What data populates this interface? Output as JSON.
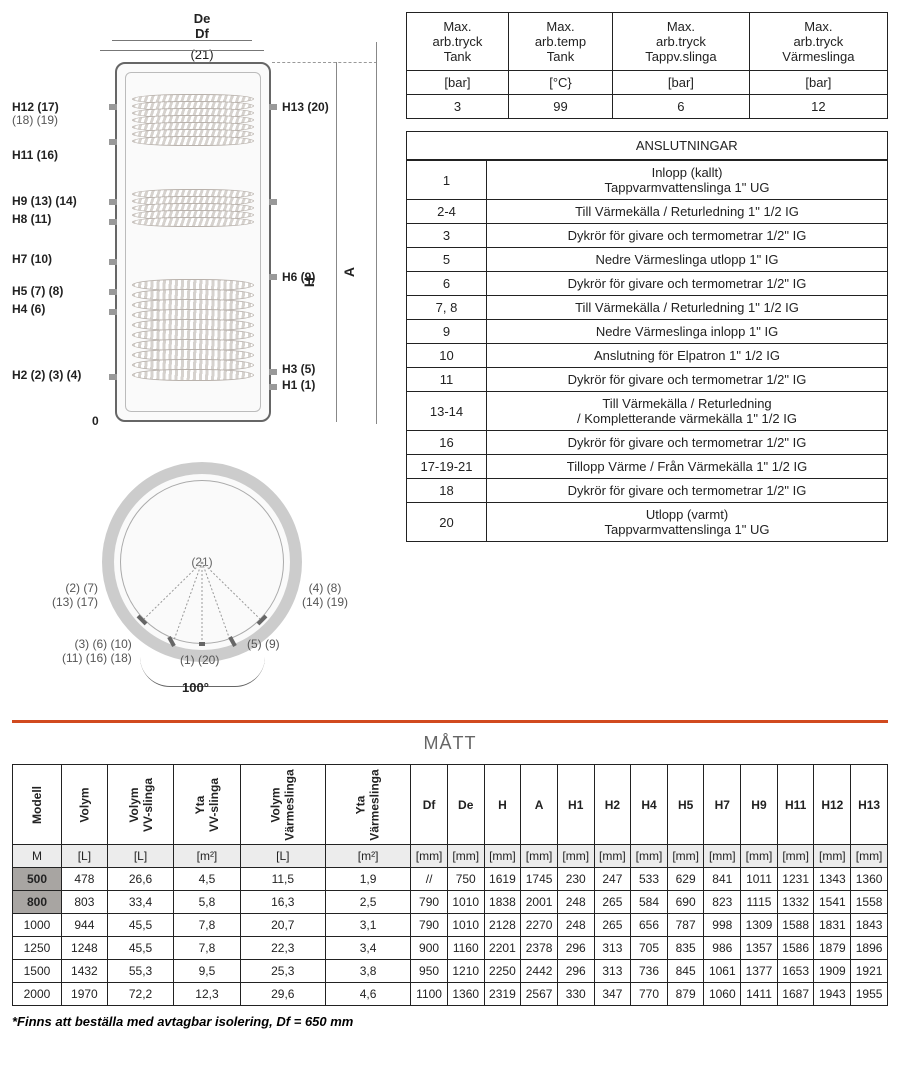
{
  "diagram": {
    "top_labels": [
      "De",
      "Df",
      "(21)"
    ],
    "side_labels_left": [
      "H12 (17)",
      "(18) (19)",
      "H11 (16)",
      "H9 (13) (14)",
      "H8 (11)",
      "H7 (10)",
      "H5 (7) (8)",
      "H4 (6)",
      "H2 (2) (3) (4)",
      "0"
    ],
    "side_labels_right": [
      "H13 (20)",
      "H6 (9)",
      "H3 (5)",
      "H1 (1)"
    ],
    "axis_H": "H",
    "axis_A": "A",
    "topview_center": "(21)",
    "topview_left1": "(2) (7)",
    "topview_left2": "(13) (17)",
    "topview_right1": "(4) (8)",
    "topview_right2": "(14) (19)",
    "topview_bl1": "(3) (6) (10)",
    "topview_bl2": "(11) (16) (18)",
    "topview_br": "(5) (9)",
    "topview_bottom": "(1) (20)",
    "arc_label": "100°"
  },
  "spec_table": {
    "headers": [
      "Max.\narb.tryck\nTank",
      "Max.\narb.temp\nTank",
      "Max.\narb.tryck\nTappv.slinga",
      "Max.\narb.tryck\nVärmeslinga"
    ],
    "units": [
      "[bar]",
      "[°C}",
      "[bar]",
      "[bar]"
    ],
    "values": [
      "3",
      "99",
      "6",
      "12"
    ]
  },
  "connections": {
    "title": "ANSLUTNINGAR",
    "rows": [
      [
        "1",
        "Inlopp (kallt)\nTappvarmvattenslinga 1\" UG"
      ],
      [
        "2-4",
        "Till Värmekälla / Returledning 1\" 1/2 IG"
      ],
      [
        "3",
        "Dykrör för givare och termometrar 1/2\" IG"
      ],
      [
        "5",
        "Nedre Värmeslinga utlopp 1\" IG"
      ],
      [
        "6",
        "Dykrör för givare och termometrar 1/2\" IG"
      ],
      [
        "7, 8",
        "Till Värmekälla / Returledning 1\" 1/2 IG"
      ],
      [
        "9",
        "Nedre Värmeslinga inlopp 1\" IG"
      ],
      [
        "10",
        "Anslutning för Elpatron 1\" 1/2 IG"
      ],
      [
        "11",
        "Dykrör för givare och termometrar 1/2\" IG"
      ],
      [
        "13-14",
        "Till Värmekälla / Returledning\n/ Kompletterande värmekälla 1\" 1/2 IG"
      ],
      [
        "16",
        "Dykrör för givare och termometrar 1/2\" IG"
      ],
      [
        "17-19-21",
        "Tillopp Värme / Från Värmekälla 1\" 1/2 IG"
      ],
      [
        "18",
        "Dykrör för givare och termometrar 1/2\" IG"
      ],
      [
        "20",
        "Utlopp (varmt)\nTappvarmvattenslinga 1\" UG"
      ]
    ]
  },
  "matt_title": "MÅTT",
  "matt_table": {
    "headers": [
      "Modell",
      "Volym",
      "Volym\nVV-slinga",
      "Yta\nVV-slinga",
      "Volym\nVärmeslinga",
      "Yta\nVärmeslinga",
      "Df",
      "De",
      "H",
      "A",
      "H1",
      "H2",
      "H4",
      "H5",
      "H7",
      "H9",
      "H11",
      "H12",
      "H13"
    ],
    "units": [
      "M",
      "[L]",
      "[L]",
      "[m²]",
      "[L]",
      "[m²]",
      "[mm]",
      "[mm]",
      "[mm]",
      "[mm]",
      "[mm]",
      "[mm]",
      "[mm]",
      "[mm]",
      "[mm]",
      "[mm]",
      "[mm]",
      "[mm]",
      "[mm]"
    ],
    "rows": [
      {
        "hl": true,
        "cells": [
          "500",
          "478",
          "26,6",
          "4,5",
          "11,5",
          "1,9",
          "//",
          "750",
          "1619",
          "1745",
          "230",
          "247",
          "533",
          "629",
          "841",
          "1011",
          "1231",
          "1343",
          "1360"
        ]
      },
      {
        "hl": true,
        "cells": [
          "800",
          "803",
          "33,4",
          "5,8",
          "16,3",
          "2,5",
          "790",
          "1010",
          "1838",
          "2001",
          "248",
          "265",
          "584",
          "690",
          "823",
          "1115",
          "1332",
          "1541",
          "1558"
        ]
      },
      {
        "hl": false,
        "cells": [
          "1000",
          "944",
          "45,5",
          "7,8",
          "20,7",
          "3,1",
          "790",
          "1010",
          "2128",
          "2270",
          "248",
          "265",
          "656",
          "787",
          "998",
          "1309",
          "1588",
          "1831",
          "1843"
        ]
      },
      {
        "hl": false,
        "cells": [
          "1250",
          "1248",
          "45,5",
          "7,8",
          "22,3",
          "3,4",
          "900",
          "1160",
          "2201",
          "2378",
          "296",
          "313",
          "705",
          "835",
          "986",
          "1357",
          "1586",
          "1879",
          "1896"
        ]
      },
      {
        "hl": false,
        "cells": [
          "1500",
          "1432",
          "55,3",
          "9,5",
          "25,3",
          "3,8",
          "950",
          "1210",
          "2250",
          "2442",
          "296",
          "313",
          "736",
          "845",
          "1061",
          "1377",
          "1653",
          "1909",
          "1921"
        ]
      },
      {
        "hl": false,
        "cells": [
          "2000",
          "1970",
          "72,2",
          "12,3",
          "29,6",
          "4,6",
          "1100",
          "1360",
          "2319",
          "2567",
          "330",
          "347",
          "770",
          "879",
          "1060",
          "1411",
          "1687",
          "1943",
          "1955"
        ]
      }
    ]
  },
  "footnote": "*Finns att beställa med avtagbar isolering, Df = 650 mm"
}
